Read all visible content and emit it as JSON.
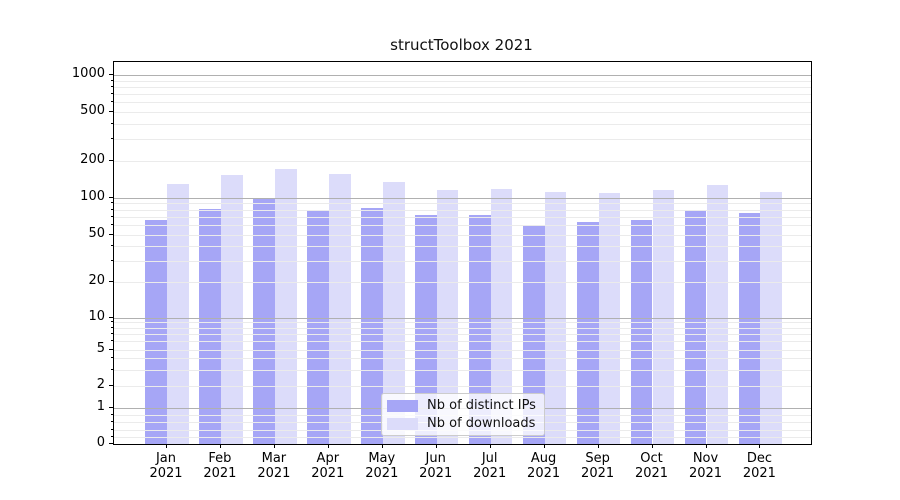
{
  "title": "structToolbox 2021",
  "chart_data": {
    "type": "bar",
    "title": "structToolbox 2021",
    "x_ticks": [
      {
        "line1": "Jan",
        "line2": "2021"
      },
      {
        "line1": "Feb",
        "line2": "2021"
      },
      {
        "line1": "Mar",
        "line2": "2021"
      },
      {
        "line1": "Apr",
        "line2": "2021"
      },
      {
        "line1": "May",
        "line2": "2021"
      },
      {
        "line1": "Jun",
        "line2": "2021"
      },
      {
        "line1": "Jul",
        "line2": "2021"
      },
      {
        "line1": "Aug",
        "line2": "2021"
      },
      {
        "line1": "Sep",
        "line2": "2021"
      },
      {
        "line1": "Oct",
        "line2": "2021"
      },
      {
        "line1": "Nov",
        "line2": "2021"
      },
      {
        "line1": "Dec",
        "line2": "2021"
      }
    ],
    "categories": [
      "Jan 2021",
      "Feb 2021",
      "Mar 2021",
      "Apr 2021",
      "May 2021",
      "Jun 2021",
      "Jul 2021",
      "Aug 2021",
      "Sep 2021",
      "Oct 2021",
      "Nov 2021",
      "Dec 2021"
    ],
    "series": [
      {
        "name": "Nb of distinct IPs",
        "color": "#a6a6f6",
        "values": [
          66,
          81,
          100,
          78,
          83,
          72,
          72,
          60,
          64,
          66,
          80,
          75
        ]
      },
      {
        "name": "Nb of downloads",
        "color": "#dcdcfa",
        "values": [
          130,
          154,
          173,
          156,
          135,
          115,
          118,
          112,
          110,
          116,
          127,
          112
        ]
      }
    ],
    "y_tick_labels": [
      "0",
      "1",
      "2",
      "5",
      "10",
      "20",
      "50",
      "100",
      "200",
      "500",
      "1000"
    ],
    "yscale": "symlog (linear 0-1, logarithmic above)",
    "ylim": [
      0,
      1280
    ],
    "grid": "major gray lines at powers of 10, faint minor lines between, drawn over bars",
    "legend_position": "lower center inside plot",
    "grid_major_color": "#b0b0b0",
    "grid_minor_color": "#ebebeb"
  }
}
